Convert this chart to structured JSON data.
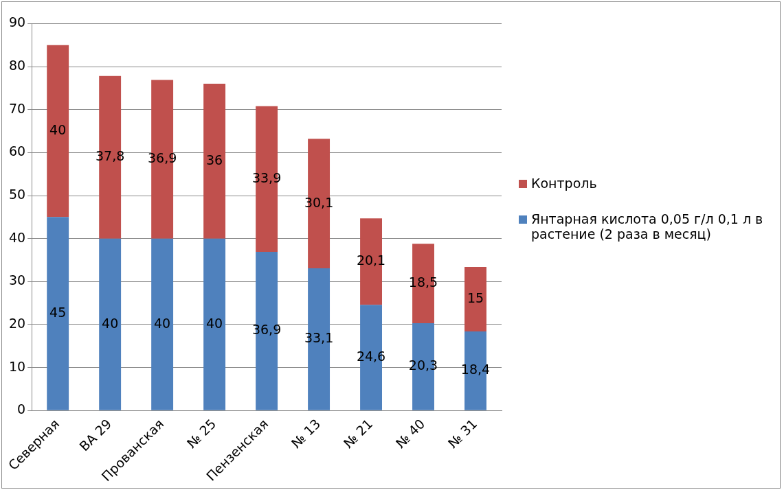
{
  "chart_data": {
    "type": "bar",
    "stacked": true,
    "categories": [
      "Северная",
      "ВА 29",
      "Прованская",
      "№ 25",
      "Пензенская",
      "№ 13",
      "№ 21",
      "№ 40",
      "№ 31"
    ],
    "series": [
      {
        "name": "Янтарная кислота 0,05 г/л  0,1 л в растение (2 раза в месяц)",
        "color": "#4f81bd",
        "values": [
          45,
          40,
          40,
          40,
          36.9,
          33.1,
          24.6,
          20.3,
          18.4
        ],
        "value_labels": [
          "45",
          "40",
          "40",
          "40",
          "36,9",
          "33,1",
          "24,6",
          "20,3",
          "18,4"
        ]
      },
      {
        "name": "Контроль",
        "color": "#c0504d",
        "values": [
          40,
          37.8,
          36.9,
          36,
          33.9,
          30.1,
          20.1,
          18.5,
          15
        ],
        "value_labels": [
          "40",
          "37,8",
          "36,9",
          "36",
          "33,9",
          "30,1",
          "20,1",
          "18,5",
          "15"
        ]
      }
    ],
    "ylim": [
      0,
      90
    ],
    "yticks": [
      0,
      10,
      20,
      30,
      40,
      50,
      60,
      70,
      80,
      90
    ],
    "grid": "y",
    "legend": "right"
  }
}
